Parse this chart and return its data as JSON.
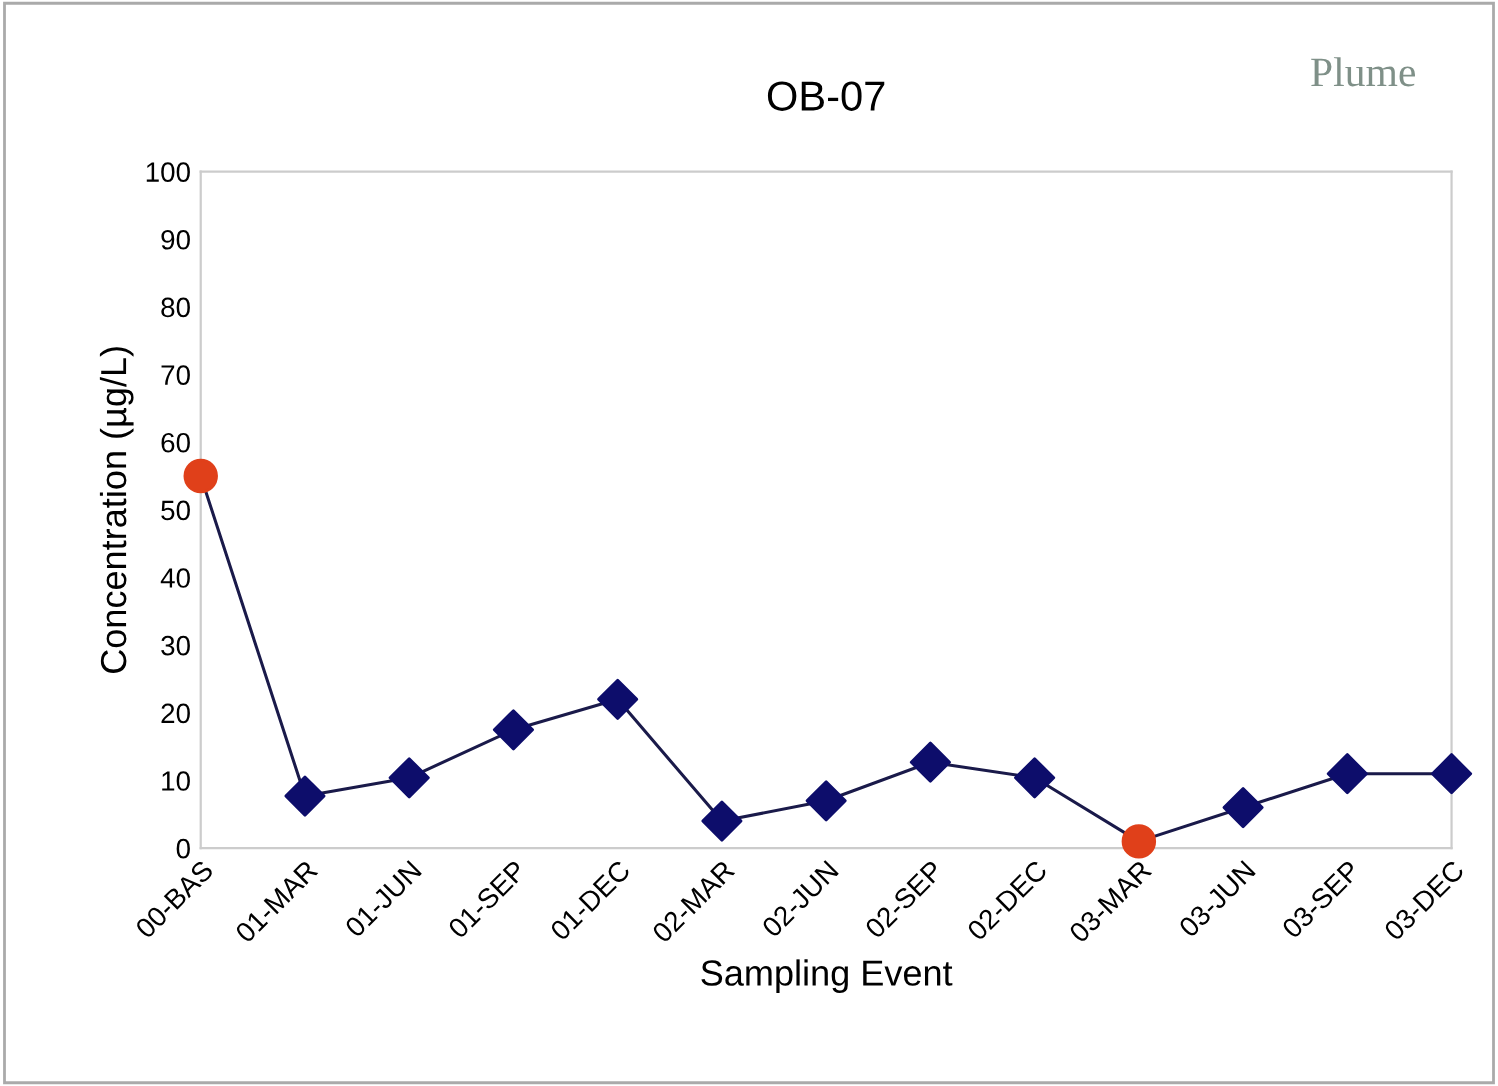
{
  "chart_data": {
    "type": "line",
    "title": "OB-07",
    "xlabel": "Sampling Event",
    "ylabel": "Concentration (µg/L)",
    "annotations": [
      "Plume"
    ],
    "categories": [
      "00-BAS",
      "01-MAR",
      "01-JUN",
      "01-SEP",
      "01-DEC",
      "02-MAR",
      "02-JUN",
      "02-SEP",
      "02-DEC",
      "03-MAR",
      "03-JUN",
      "03-SEP",
      "03-DEC"
    ],
    "series": [
      {
        "color": "#1a1a4a",
        "marker": "none",
        "values": [
          55,
          7.7,
          10.4,
          17.5,
          22,
          4,
          7,
          12.7,
          10.4,
          1,
          6,
          11,
          11
        ]
      },
      {
        "type": "scatter",
        "color": "#0d0d6b",
        "marker": "diamond",
        "x": [
          "01-MAR",
          "01-JUN",
          "01-SEP",
          "01-DEC",
          "02-MAR",
          "02-JUN",
          "02-SEP",
          "02-DEC",
          "03-JUN",
          "03-SEP",
          "03-DEC"
        ],
        "values": [
          7.7,
          10.4,
          17.5,
          22,
          4,
          7,
          12.7,
          10.4,
          6,
          11,
          11
        ]
      },
      {
        "type": "scatter",
        "color": "#e0401a",
        "marker": "circle",
        "x": [
          "00-BAS",
          "03-MAR"
        ],
        "values": [
          55,
          1
        ]
      }
    ],
    "ylim": [
      0,
      100
    ],
    "yticks": [
      0,
      10,
      20,
      30,
      40,
      50,
      60,
      70,
      80,
      90,
      100
    ],
    "grid": false,
    "legend": false
  }
}
